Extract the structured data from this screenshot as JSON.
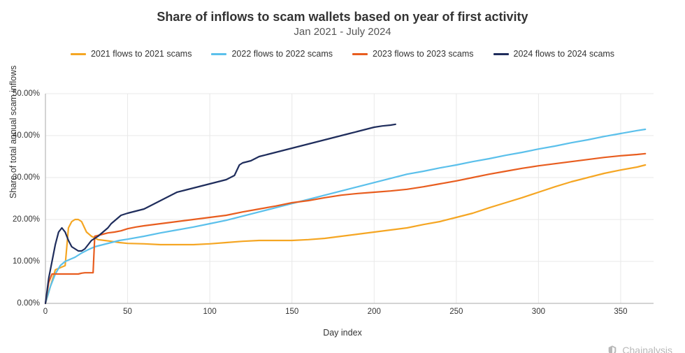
{
  "title": "Share of inflows to scam wallets based on year of first activity",
  "subtitle": "Jan 2021 - July 2024",
  "x_axis_title": "Day index",
  "y_axis_title": "Share of total annual scam inflows",
  "brand": "Chainalysis",
  "chart": {
    "type": "line",
    "xlim": [
      0,
      370
    ],
    "ylim": [
      0,
      50
    ],
    "y_tick_step": 10,
    "y_tick_format_suffix": ".00%",
    "x_ticks": [
      0,
      50,
      100,
      150,
      200,
      250,
      300,
      350
    ],
    "background_color": "#ffffff",
    "grid_color": "#e8e8e8",
    "axis_color": "#aaaaaa",
    "tick_fontsize": 11.5,
    "title_fontsize": 18,
    "subtitle_fontsize": 15,
    "label_fontsize": 12.5,
    "legend_fontsize": 12.5,
    "line_width": 2.2,
    "series": [
      {
        "name": "2021 flows to 2021 scams",
        "color": "#f5a623",
        "data": [
          [
            0,
            0
          ],
          [
            3,
            4
          ],
          [
            6,
            8
          ],
          [
            9,
            8.5
          ],
          [
            12,
            9
          ],
          [
            14,
            18
          ],
          [
            16,
            19.5
          ],
          [
            18,
            20
          ],
          [
            20,
            20
          ],
          [
            22,
            19.5
          ],
          [
            25,
            17
          ],
          [
            28,
            16
          ],
          [
            32,
            15.2
          ],
          [
            36,
            15
          ],
          [
            40,
            14.8
          ],
          [
            45,
            14.5
          ],
          [
            50,
            14.3
          ],
          [
            60,
            14.2
          ],
          [
            70,
            14
          ],
          [
            80,
            14
          ],
          [
            90,
            14
          ],
          [
            100,
            14.2
          ],
          [
            110,
            14.5
          ],
          [
            120,
            14.8
          ],
          [
            130,
            15
          ],
          [
            140,
            15
          ],
          [
            150,
            15
          ],
          [
            160,
            15.2
          ],
          [
            170,
            15.5
          ],
          [
            180,
            16
          ],
          [
            190,
            16.5
          ],
          [
            200,
            17
          ],
          [
            210,
            17.5
          ],
          [
            220,
            18
          ],
          [
            230,
            18.8
          ],
          [
            240,
            19.5
          ],
          [
            250,
            20.5
          ],
          [
            260,
            21.5
          ],
          [
            270,
            22.8
          ],
          [
            280,
            24
          ],
          [
            290,
            25.2
          ],
          [
            300,
            26.5
          ],
          [
            310,
            27.8
          ],
          [
            320,
            29
          ],
          [
            330,
            30
          ],
          [
            340,
            31
          ],
          [
            350,
            31.8
          ],
          [
            360,
            32.5
          ],
          [
            365,
            33
          ]
        ]
      },
      {
        "name": "2022 flows to 2022 scams",
        "color": "#5bc0eb",
        "data": [
          [
            0,
            0
          ],
          [
            3,
            4
          ],
          [
            6,
            7
          ],
          [
            9,
            9
          ],
          [
            12,
            10
          ],
          [
            15,
            10.5
          ],
          [
            18,
            11
          ],
          [
            22,
            12
          ],
          [
            26,
            12.8
          ],
          [
            30,
            13.5
          ],
          [
            35,
            14
          ],
          [
            40,
            14.5
          ],
          [
            45,
            15
          ],
          [
            50,
            15.3
          ],
          [
            60,
            16
          ],
          [
            70,
            16.8
          ],
          [
            80,
            17.5
          ],
          [
            90,
            18.2
          ],
          [
            100,
            19
          ],
          [
            110,
            19.8
          ],
          [
            120,
            20.8
          ],
          [
            130,
            21.8
          ],
          [
            140,
            22.8
          ],
          [
            150,
            23.8
          ],
          [
            160,
            24.8
          ],
          [
            170,
            25.8
          ],
          [
            180,
            26.8
          ],
          [
            190,
            27.8
          ],
          [
            200,
            28.8
          ],
          [
            210,
            29.8
          ],
          [
            220,
            30.8
          ],
          [
            230,
            31.5
          ],
          [
            240,
            32.3
          ],
          [
            250,
            33
          ],
          [
            260,
            33.8
          ],
          [
            270,
            34.5
          ],
          [
            280,
            35.3
          ],
          [
            290,
            36
          ],
          [
            300,
            36.8
          ],
          [
            310,
            37.5
          ],
          [
            320,
            38.3
          ],
          [
            330,
            39
          ],
          [
            340,
            39.8
          ],
          [
            350,
            40.5
          ],
          [
            360,
            41.2
          ],
          [
            365,
            41.5
          ]
        ]
      },
      {
        "name": "2023 flows to 2023 scams",
        "color": "#e85d1f",
        "data": [
          [
            0,
            0
          ],
          [
            2,
            5
          ],
          [
            4,
            7
          ],
          [
            6,
            7
          ],
          [
            8,
            7
          ],
          [
            10,
            7
          ],
          [
            12,
            7
          ],
          [
            14,
            7
          ],
          [
            16,
            7
          ],
          [
            18,
            7
          ],
          [
            20,
            7
          ],
          [
            22,
            7.2
          ],
          [
            24,
            7.3
          ],
          [
            26,
            7.3
          ],
          [
            28,
            7.3
          ],
          [
            29,
            7.3
          ],
          [
            30,
            16
          ],
          [
            32,
            16.2
          ],
          [
            35,
            16.5
          ],
          [
            38,
            16.8
          ],
          [
            42,
            17
          ],
          [
            46,
            17.3
          ],
          [
            50,
            17.8
          ],
          [
            55,
            18.2
          ],
          [
            60,
            18.5
          ],
          [
            70,
            19
          ],
          [
            80,
            19.5
          ],
          [
            90,
            20
          ],
          [
            100,
            20.5
          ],
          [
            110,
            21
          ],
          [
            120,
            21.8
          ],
          [
            130,
            22.5
          ],
          [
            140,
            23.2
          ],
          [
            150,
            24
          ],
          [
            160,
            24.5
          ],
          [
            170,
            25.2
          ],
          [
            180,
            25.8
          ],
          [
            190,
            26.2
          ],
          [
            200,
            26.5
          ],
          [
            210,
            26.8
          ],
          [
            220,
            27.2
          ],
          [
            230,
            27.8
          ],
          [
            240,
            28.5
          ],
          [
            250,
            29.2
          ],
          [
            260,
            30
          ],
          [
            270,
            30.8
          ],
          [
            280,
            31.5
          ],
          [
            290,
            32.2
          ],
          [
            300,
            32.8
          ],
          [
            310,
            33.3
          ],
          [
            320,
            33.8
          ],
          [
            330,
            34.3
          ],
          [
            340,
            34.8
          ],
          [
            350,
            35.2
          ],
          [
            360,
            35.5
          ],
          [
            365,
            35.7
          ]
        ]
      },
      {
        "name": "2024 flows to 2024 scams",
        "color": "#1f2d5c",
        "data": [
          [
            0,
            0
          ],
          [
            2,
            6
          ],
          [
            4,
            10
          ],
          [
            6,
            14
          ],
          [
            8,
            17
          ],
          [
            10,
            18
          ],
          [
            12,
            17
          ],
          [
            14,
            15
          ],
          [
            16,
            13.5
          ],
          [
            18,
            13
          ],
          [
            20,
            12.5
          ],
          [
            22,
            12.5
          ],
          [
            24,
            13
          ],
          [
            26,
            14
          ],
          [
            28,
            15
          ],
          [
            30,
            15.5
          ],
          [
            32,
            16
          ],
          [
            35,
            17
          ],
          [
            38,
            18
          ],
          [
            40,
            19
          ],
          [
            43,
            20
          ],
          [
            46,
            21
          ],
          [
            50,
            21.5
          ],
          [
            55,
            22
          ],
          [
            60,
            22.5
          ],
          [
            65,
            23.5
          ],
          [
            70,
            24.5
          ],
          [
            75,
            25.5
          ],
          [
            80,
            26.5
          ],
          [
            85,
            27
          ],
          [
            90,
            27.5
          ],
          [
            95,
            28
          ],
          [
            100,
            28.5
          ],
          [
            105,
            29
          ],
          [
            110,
            29.5
          ],
          [
            115,
            30.5
          ],
          [
            118,
            33
          ],
          [
            120,
            33.5
          ],
          [
            125,
            34
          ],
          [
            130,
            35
          ],
          [
            135,
            35.5
          ],
          [
            140,
            36
          ],
          [
            145,
            36.5
          ],
          [
            150,
            37
          ],
          [
            155,
            37.5
          ],
          [
            160,
            38
          ],
          [
            165,
            38.5
          ],
          [
            170,
            39
          ],
          [
            175,
            39.5
          ],
          [
            180,
            40
          ],
          [
            185,
            40.5
          ],
          [
            190,
            41
          ],
          [
            195,
            41.5
          ],
          [
            200,
            42
          ],
          [
            205,
            42.3
          ],
          [
            210,
            42.5
          ],
          [
            213,
            42.7
          ]
        ]
      }
    ]
  }
}
